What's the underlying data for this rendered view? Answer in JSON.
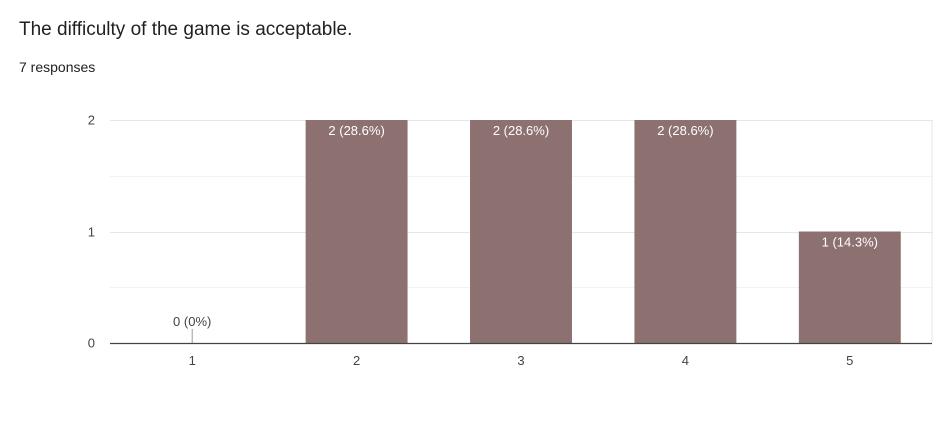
{
  "question": {
    "title": "The difficulty of the game is acceptable.",
    "responses": "7 responses"
  },
  "colors": {
    "bar": "#8d7070",
    "grid": "#e6e6e6",
    "axis": "#444444",
    "label_inside": "#ffffff",
    "label_outside": "#444444"
  },
  "chart_data": {
    "type": "bar",
    "title": "",
    "xlabel": "",
    "ylabel": "",
    "categories": [
      "1",
      "2",
      "3",
      "4",
      "5"
    ],
    "values": [
      0,
      2,
      2,
      2,
      1
    ],
    "labels": [
      "0 (0%)",
      "2 (28.6%)",
      "2 (28.6%)",
      "2 (28.6%)",
      "1 (14.3%)"
    ],
    "yticks": [
      "0",
      "1",
      "2"
    ],
    "ylim": [
      0,
      2
    ],
    "grid": true,
    "legend": "none"
  }
}
